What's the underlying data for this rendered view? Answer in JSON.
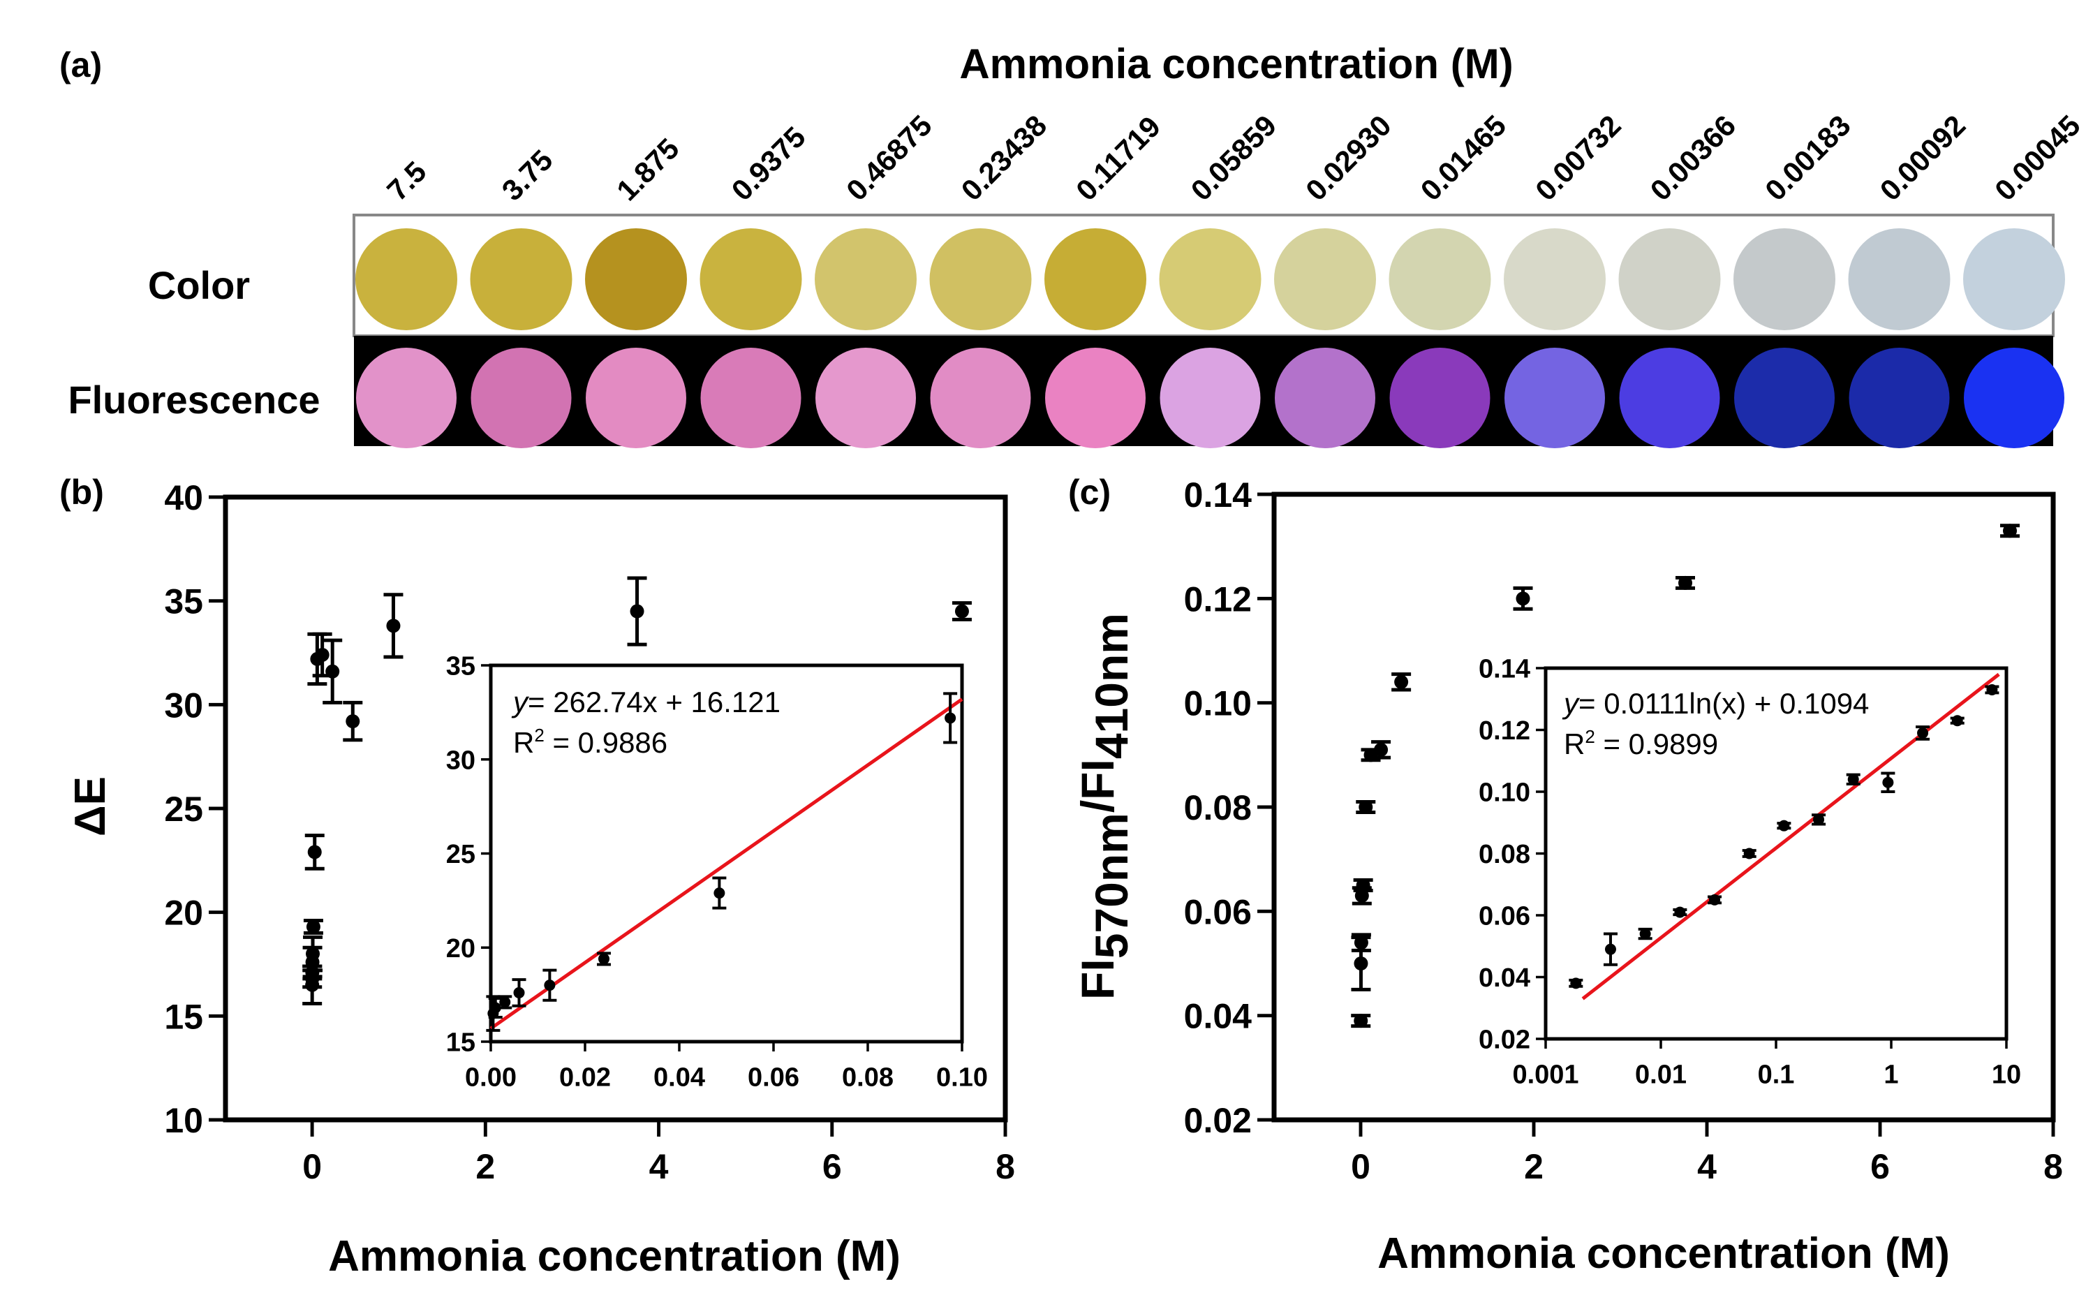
{
  "panel_a": {
    "label": "(a)",
    "title": "Ammonia concentration (M)",
    "concentrations": [
      "7.5",
      "3.75",
      "1.875",
      "0.9375",
      "0.46875",
      "0.23438",
      "0.11719",
      "0.05859",
      "0.02930",
      "0.01465",
      "0.00732",
      "0.00366",
      "0.00183",
      "0.00092",
      "0.00045"
    ],
    "row_labels": {
      "color": "Color",
      "fluorescence": "Fluorescence"
    },
    "color_row": [
      "#c9b23e",
      "#c8b03a",
      "#b5921f",
      "#c9b33f",
      "#d2c46c",
      "#d0c062",
      "#c6ad35",
      "#d6cb74",
      "#d5d29c",
      "#d3d5b0",
      "#d8d9c9",
      "#d0d2c8",
      "#c4c9cb",
      "#c0cad2",
      "#c3d1dd"
    ],
    "fluorescence_row": [
      "#e292c9",
      "#d273b2",
      "#e38bc2",
      "#d97bb8",
      "#e598cd",
      "#e18cc5",
      "#ea82c2",
      "#dba3e2",
      "#b372cb",
      "#8a3abb",
      "#7464e2",
      "#4c3de2",
      "#1c2caa",
      "#1b2aa9",
      "#1a32f2"
    ]
  },
  "chart_data": [
    {
      "id": "b-main",
      "type": "scatter",
      "panel_label": "(b)",
      "xlabel": "Ammonia concentration (M)",
      "ylabel": "ΔE",
      "xlim": [
        -1,
        8
      ],
      "ylim": [
        10,
        40
      ],
      "xticks": [
        "0",
        "2",
        "4",
        "6",
        "8"
      ],
      "xtick_values": [
        0,
        2,
        4,
        6,
        8
      ],
      "yticks": [
        "10",
        "15",
        "20",
        "25",
        "30",
        "35",
        "40"
      ],
      "ytick_values": [
        10,
        15,
        20,
        25,
        30,
        35,
        40
      ],
      "points": [
        {
          "x": 7.5,
          "y": 34.5,
          "err": 0.4
        },
        {
          "x": 3.75,
          "y": 34.5,
          "err": 1.6
        },
        {
          "x": 0.9375,
          "y": 33.8,
          "err": 1.5
        },
        {
          "x": 0.46875,
          "y": 29.2,
          "err": 0.9
        },
        {
          "x": 0.23438,
          "y": 31.6,
          "err": 1.5
        },
        {
          "x": 0.11719,
          "y": 32.4,
          "err": 1.0
        },
        {
          "x": 0.05859,
          "y": 32.2,
          "err": 1.2
        },
        {
          "x": 0.0293,
          "y": 22.9,
          "err": 0.8
        },
        {
          "x": 0.01465,
          "y": 19.3,
          "err": 0.3
        },
        {
          "x": 0.00732,
          "y": 18.0,
          "err": 0.8
        },
        {
          "x": 0.00366,
          "y": 17.6,
          "err": 0.7
        },
        {
          "x": 0.00183,
          "y": 17.1,
          "err": 0.3
        },
        {
          "x": 0.00092,
          "y": 16.8,
          "err": 0.4
        },
        {
          "x": 0.00045,
          "y": 16.5,
          "err": 0.9
        }
      ]
    },
    {
      "id": "b-inset",
      "type": "scatter",
      "xlim": [
        0,
        0.1
      ],
      "ylim": [
        15,
        35
      ],
      "xticks": [
        "0.00",
        "0.02",
        "0.04",
        "0.06",
        "0.08",
        "0.10"
      ],
      "xtick_values": [
        0,
        0.02,
        0.04,
        0.06,
        0.08,
        0.1
      ],
      "yticks": [
        "15",
        "20",
        "25",
        "30",
        "35"
      ],
      "ytick_values": [
        15,
        20,
        25,
        30,
        35
      ],
      "equation": "= 262.74x + 16.121",
      "equation_y": "y",
      "r2_label": "R",
      "r2_value": " = 0.9886",
      "fit_line": [
        [
          0,
          15.7
        ],
        [
          0.1,
          33.2
        ]
      ],
      "fit_color": "#e8141b",
      "points": [
        {
          "x": 0.0005,
          "y": 16.5,
          "err": 0.9
        },
        {
          "x": 0.001,
          "y": 16.8,
          "err": 0.5
        },
        {
          "x": 0.003,
          "y": 17.1,
          "err": 0.3
        },
        {
          "x": 0.006,
          "y": 17.6,
          "err": 0.7
        },
        {
          "x": 0.0125,
          "y": 18.0,
          "err": 0.8
        },
        {
          "x": 0.024,
          "y": 19.4,
          "err": 0.3
        },
        {
          "x": 0.0485,
          "y": 22.9,
          "err": 0.8
        },
        {
          "x": 0.0975,
          "y": 32.2,
          "err": 1.3
        }
      ]
    },
    {
      "id": "c-main",
      "type": "scatter",
      "panel_label": "(c)",
      "xlabel": "Ammonia concentration (M)",
      "ylabel_parts": [
        "FI",
        "570nm",
        "/FI",
        "410nm"
      ],
      "xlim": [
        -1,
        8
      ],
      "ylim": [
        0.02,
        0.14
      ],
      "xticks": [
        "0",
        "2",
        "4",
        "6",
        "8"
      ],
      "xtick_values": [
        0,
        2,
        4,
        6,
        8
      ],
      "yticks": [
        "0.02",
        "0.04",
        "0.06",
        "0.08",
        "0.10",
        "0.12",
        "0.14"
      ],
      "ytick_values": [
        0.02,
        0.04,
        0.06,
        0.08,
        0.1,
        0.12,
        0.14
      ],
      "points": [
        {
          "x": 7.5,
          "y": 0.133,
          "err": 0.001
        },
        {
          "x": 3.75,
          "y": 0.123,
          "err": 0.001
        },
        {
          "x": 1.875,
          "y": 0.12,
          "err": 0.002
        },
        {
          "x": 0.46875,
          "y": 0.104,
          "err": 0.0015
        },
        {
          "x": 0.23438,
          "y": 0.091,
          "err": 0.0015
        },
        {
          "x": 0.11719,
          "y": 0.09,
          "err": 0.001
        },
        {
          "x": 0.05859,
          "y": 0.08,
          "err": 0.001
        },
        {
          "x": 0.0293,
          "y": 0.065,
          "err": 0.001
        },
        {
          "x": 0.01465,
          "y": 0.063,
          "err": 0.0015
        },
        {
          "x": 0.00732,
          "y": 0.054,
          "err": 0.0015
        },
        {
          "x": 0.00366,
          "y": 0.05,
          "err": 0.005
        },
        {
          "x": 0.00183,
          "y": 0.039,
          "err": 0.001
        }
      ]
    },
    {
      "id": "c-inset",
      "type": "scatter",
      "xscale": "log",
      "xlim": [
        0.001,
        10
      ],
      "ylim": [
        0.02,
        0.14
      ],
      "xticks": [
        "0.001",
        "0.01",
        "0.1",
        "1",
        "10"
      ],
      "xtick_values": [
        0.001,
        0.01,
        0.1,
        1,
        10
      ],
      "yticks": [
        "0.02",
        "0.04",
        "0.06",
        "0.08",
        "0.10",
        "0.12",
        "0.14"
      ],
      "ytick_values": [
        0.02,
        0.04,
        0.06,
        0.08,
        0.1,
        0.12,
        0.14
      ],
      "equation": "= 0.0111ln(x) + 0.1094",
      "equation_y": "y",
      "r2_label": "R",
      "r2_value": " = 0.9899",
      "fit_line": [
        [
          0.0021,
          0.033
        ],
        [
          8.6,
          0.138
        ]
      ],
      "fit_color": "#e8141b",
      "points": [
        {
          "x": 0.00183,
          "y": 0.038,
          "err": 0.001
        },
        {
          "x": 0.00366,
          "y": 0.049,
          "err": 0.005
        },
        {
          "x": 0.00732,
          "y": 0.054,
          "err": 0.0015
        },
        {
          "x": 0.01465,
          "y": 0.061,
          "err": 0.0008
        },
        {
          "x": 0.0293,
          "y": 0.065,
          "err": 0.001
        },
        {
          "x": 0.05859,
          "y": 0.08,
          "err": 0.001
        },
        {
          "x": 0.11719,
          "y": 0.089,
          "err": 0.0008
        },
        {
          "x": 0.23438,
          "y": 0.091,
          "err": 0.0015
        },
        {
          "x": 0.46875,
          "y": 0.104,
          "err": 0.0015
        },
        {
          "x": 0.9375,
          "y": 0.103,
          "err": 0.003
        },
        {
          "x": 1.875,
          "y": 0.119,
          "err": 0.002
        },
        {
          "x": 3.75,
          "y": 0.123,
          "err": 0.0008
        },
        {
          "x": 7.5,
          "y": 0.133,
          "err": 0.001
        }
      ]
    }
  ]
}
